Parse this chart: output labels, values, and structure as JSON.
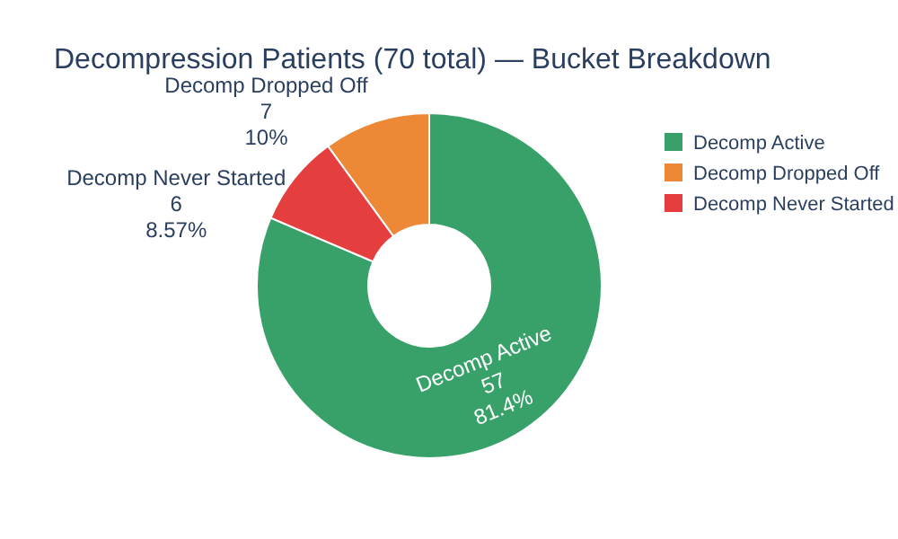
{
  "chart_data": {
    "type": "donut",
    "title": "Decompression Patients (70 total) — Bucket Breakdown",
    "categories": [
      "Decomp Active",
      "Decomp Dropped Off",
      "Decomp Never Started"
    ],
    "values": [
      57,
      7,
      6
    ],
    "colors": [
      "#38a169",
      "#ed8936",
      "#e53e3e"
    ],
    "value_labels": [
      "57\n81.4%",
      "7\n10%",
      "6\n8.57%"
    ],
    "legend": "right"
  }
}
